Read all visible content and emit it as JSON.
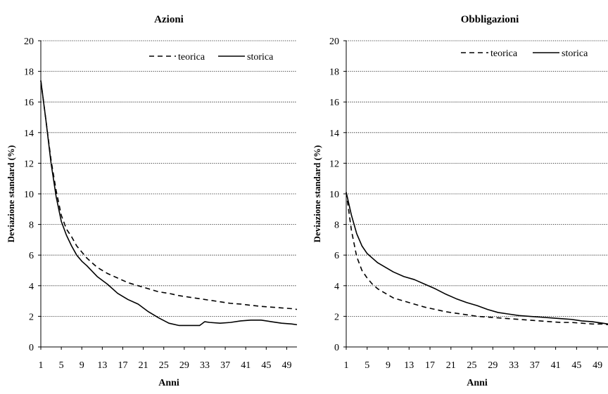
{
  "chart_data": [
    {
      "type": "line",
      "title": "Azioni",
      "xlabel": "Anni",
      "ylabel": "Deviazione standard (%)",
      "xlim": [
        1,
        51
      ],
      "ylim": [
        0,
        20
      ],
      "y_ticks": [
        0,
        2,
        4,
        6,
        8,
        10,
        12,
        14,
        16,
        18,
        20
      ],
      "x_ticks": [
        1,
        5,
        9,
        13,
        17,
        21,
        25,
        29,
        33,
        37,
        41,
        45,
        49
      ],
      "grid": "horizontal",
      "legend_position": "top-right",
      "series": [
        {
          "name": "teorica",
          "style": "dashed",
          "x": [
            1,
            2,
            3,
            4,
            5,
            6,
            7,
            8,
            9,
            10,
            12,
            14,
            16,
            18,
            20,
            22,
            24,
            26,
            28,
            30,
            32,
            34,
            36,
            38,
            40,
            42,
            44,
            46,
            48,
            50,
            51
          ],
          "y": [
            17.4,
            14.8,
            12.2,
            10.2,
            8.6,
            7.7,
            7.2,
            6.6,
            6.2,
            5.8,
            5.2,
            4.8,
            4.5,
            4.2,
            4.0,
            3.8,
            3.6,
            3.5,
            3.35,
            3.25,
            3.15,
            3.05,
            2.95,
            2.85,
            2.8,
            2.72,
            2.65,
            2.6,
            2.55,
            2.5,
            2.45
          ]
        },
        {
          "name": "storica",
          "style": "solid",
          "x": [
            1,
            2,
            3,
            4,
            5,
            6,
            7,
            8,
            9,
            10,
            12,
            14,
            16,
            18,
            20,
            22,
            24,
            26,
            28,
            29,
            30,
            31,
            32,
            33,
            34,
            36,
            38,
            40,
            42,
            44,
            46,
            48,
            50,
            51
          ],
          "y": [
            17.4,
            14.8,
            12.0,
            9.8,
            8.2,
            7.3,
            6.6,
            6.0,
            5.6,
            5.3,
            4.6,
            4.1,
            3.5,
            3.1,
            2.8,
            2.3,
            1.9,
            1.55,
            1.4,
            1.4,
            1.4,
            1.4,
            1.4,
            1.65,
            1.6,
            1.55,
            1.6,
            1.7,
            1.75,
            1.75,
            1.65,
            1.55,
            1.5,
            1.45
          ]
        }
      ]
    },
    {
      "type": "line",
      "title": "Obbligazioni",
      "xlabel": "Anni",
      "ylabel": "Deviazione standard (%)",
      "xlim": [
        1,
        51
      ],
      "ylim": [
        0,
        20
      ],
      "y_ticks": [
        0,
        2,
        4,
        6,
        8,
        10,
        12,
        14,
        16,
        18,
        20
      ],
      "x_ticks": [
        1,
        5,
        9,
        13,
        17,
        21,
        25,
        29,
        33,
        37,
        41,
        45,
        49
      ],
      "grid": "horizontal",
      "legend_position": "top-right",
      "series": [
        {
          "name": "teorica",
          "style": "dashed",
          "x": [
            1,
            2,
            3,
            4,
            5,
            6,
            7,
            8,
            9,
            10,
            12,
            14,
            16,
            18,
            20,
            22,
            24,
            26,
            28,
            30,
            32,
            34,
            36,
            38,
            40,
            42,
            44,
            46,
            48,
            50,
            51
          ],
          "y": [
            10.1,
            7.6,
            5.9,
            5.0,
            4.5,
            4.1,
            3.8,
            3.6,
            3.4,
            3.2,
            3.0,
            2.8,
            2.6,
            2.45,
            2.3,
            2.2,
            2.1,
            2.0,
            1.95,
            1.9,
            1.85,
            1.8,
            1.75,
            1.7,
            1.65,
            1.6,
            1.6,
            1.55,
            1.5,
            1.5,
            1.45
          ]
        },
        {
          "name": "storica",
          "style": "solid",
          "x": [
            1,
            2,
            3,
            4,
            5,
            6,
            7,
            8,
            9,
            10,
            12,
            14,
            16,
            18,
            20,
            22,
            24,
            26,
            28,
            30,
            32,
            34,
            36,
            38,
            40,
            42,
            44,
            46,
            48,
            50,
            51
          ],
          "y": [
            10.1,
            8.6,
            7.4,
            6.6,
            6.1,
            5.8,
            5.5,
            5.3,
            5.1,
            4.9,
            4.6,
            4.4,
            4.1,
            3.8,
            3.45,
            3.15,
            2.9,
            2.7,
            2.45,
            2.25,
            2.15,
            2.05,
            2.0,
            1.95,
            1.9,
            1.85,
            1.8,
            1.7,
            1.65,
            1.55,
            1.5
          ]
        }
      ]
    }
  ]
}
